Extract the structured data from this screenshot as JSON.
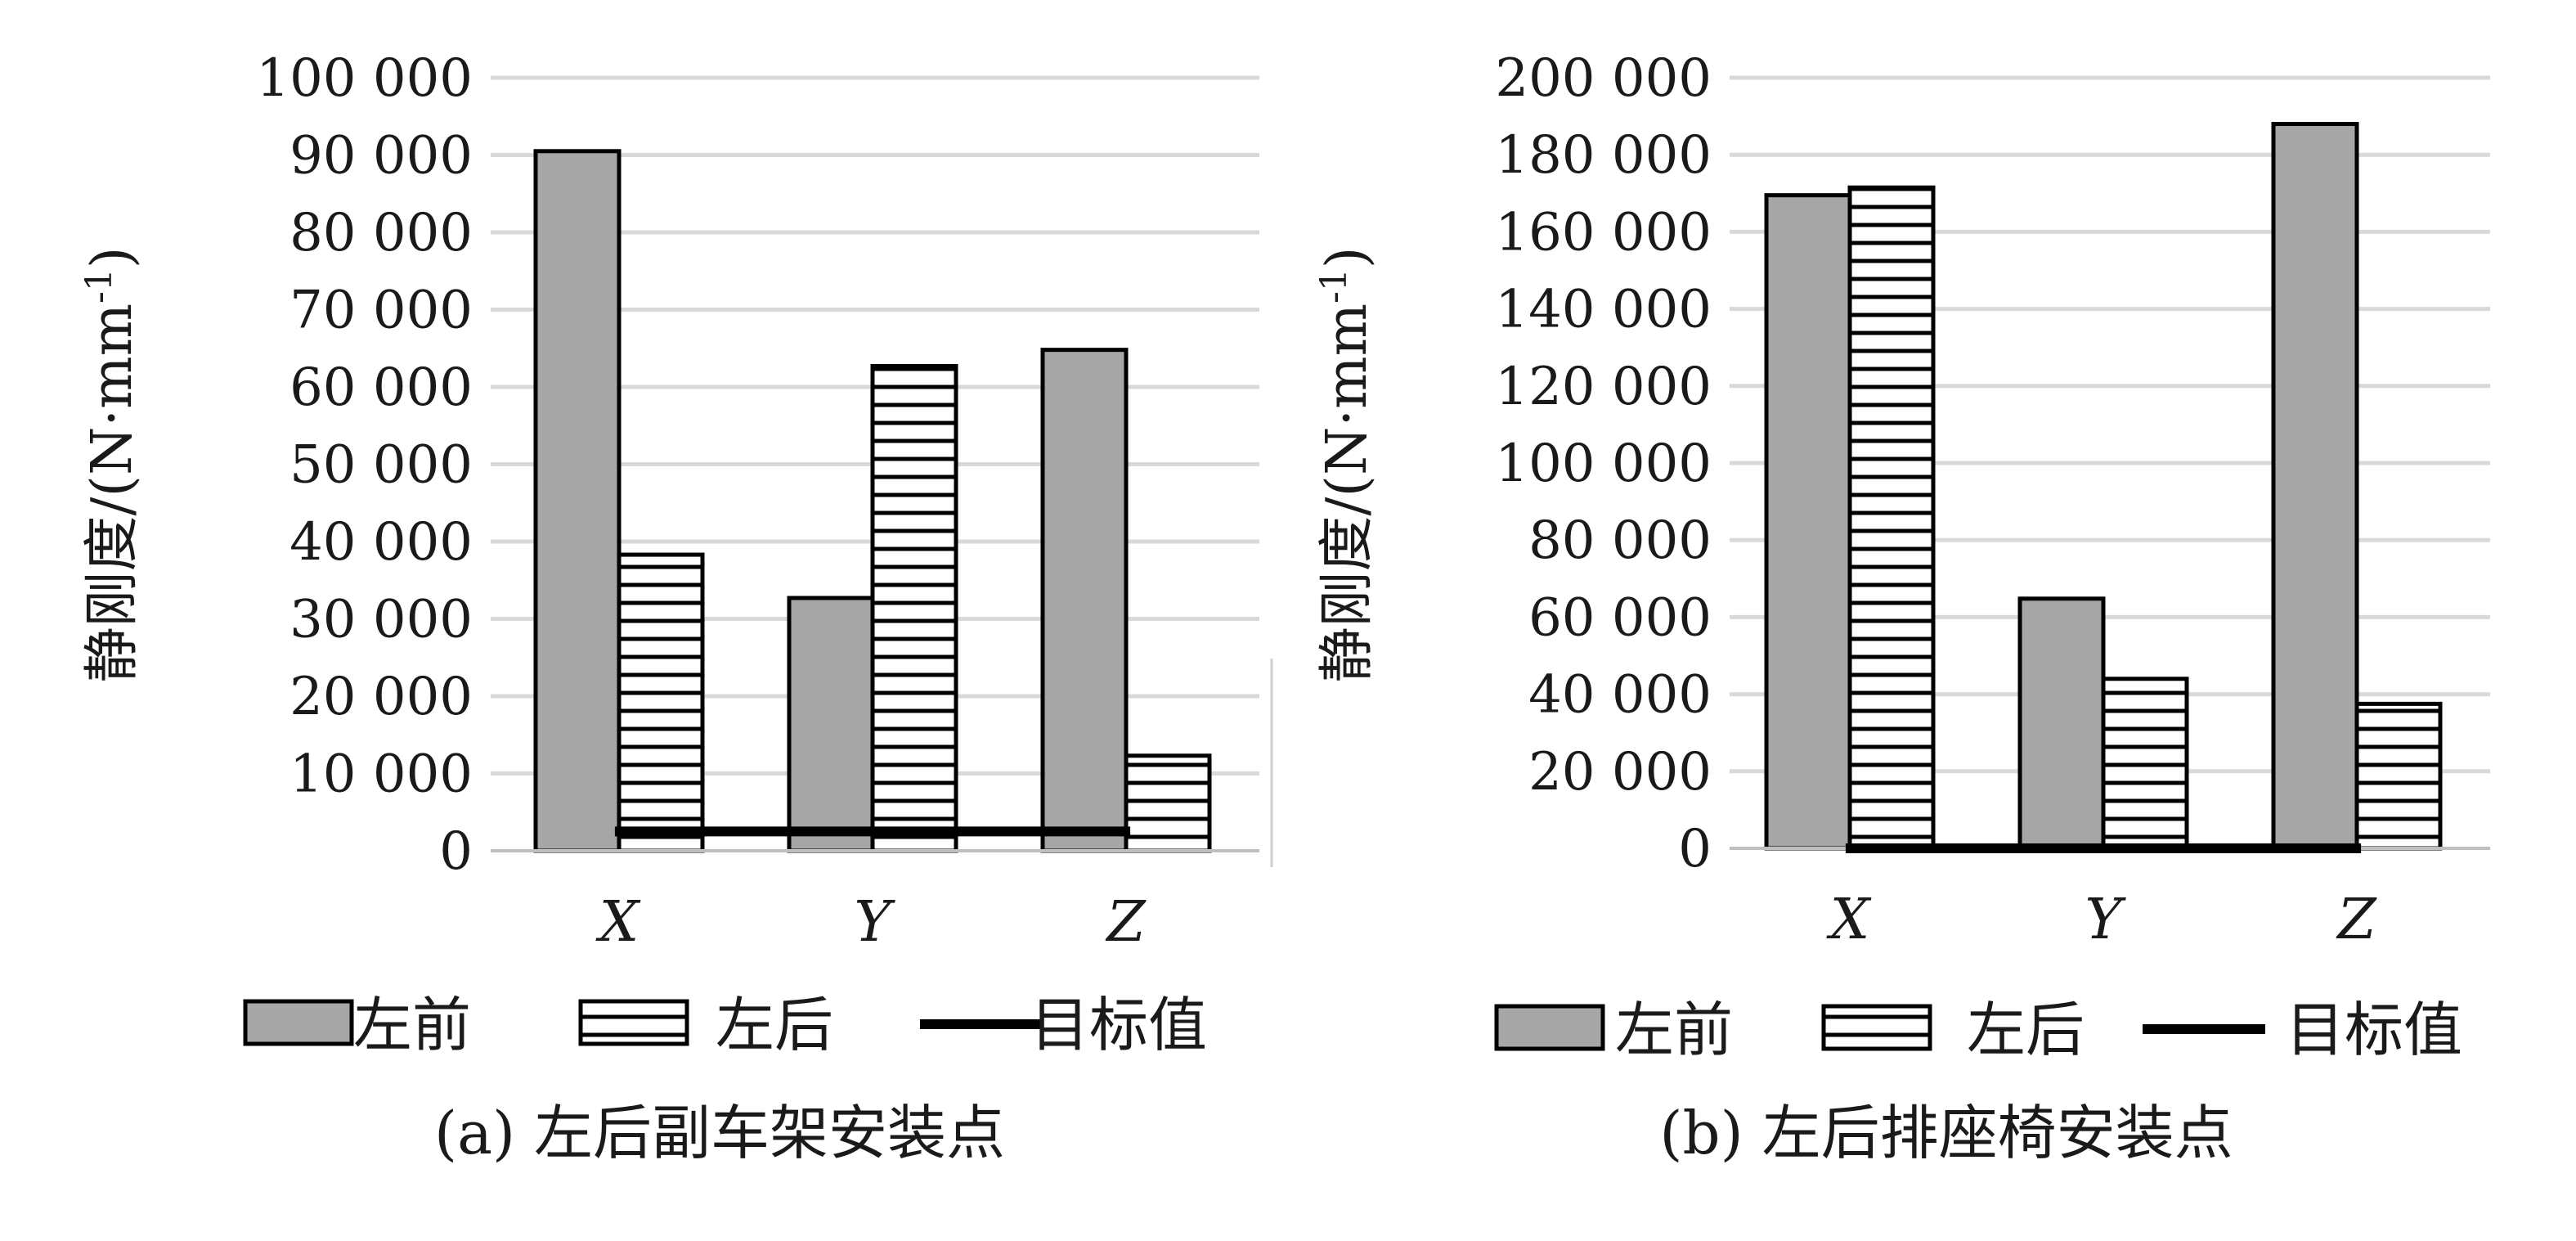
{
  "chart_data": [
    {
      "type": "bar",
      "title": "",
      "caption": "(a) 左后副车架安装点",
      "ylabel": "静刚度/(N·mm-1)",
      "ylabel_unit": "静刚度/(N·mm",
      "ylabel_sup": "-1",
      "ylabel_close": ")",
      "xlabel": "",
      "categories": [
        "X",
        "Y",
        "Z"
      ],
      "ylim": [
        0,
        100000
      ],
      "yticks": [
        0,
        10000,
        20000,
        30000,
        40000,
        50000,
        60000,
        70000,
        80000,
        90000,
        100000
      ],
      "ytick_labels": [
        "0",
        "10 000",
        "20 000",
        "30 000",
        "40 000",
        "50 000",
        "60 000",
        "70 000",
        "80 000",
        "90 000",
        "100 000"
      ],
      "grid": true,
      "legend_position": "bottom",
      "series": [
        {
          "name": "左前",
          "kind": "bar",
          "style": "solid-gray",
          "values": [
            90500,
            32700,
            64800
          ]
        },
        {
          "name": "左后",
          "kind": "bar",
          "style": "horizontal-hatch",
          "values": [
            38300,
            62700,
            12300
          ]
        },
        {
          "name": "目标值",
          "kind": "line",
          "style": "thick-black",
          "values": [
            2500,
            2500,
            2500
          ]
        }
      ]
    },
    {
      "type": "bar",
      "title": "",
      "caption": "(b) 左后排座椅安装点",
      "ylabel": "静刚度/(N·mm-1)",
      "ylabel_unit": "静刚度/(N·mm",
      "ylabel_sup": "-1",
      "ylabel_close": ")",
      "xlabel": "",
      "categories": [
        "X",
        "Y",
        "Z"
      ],
      "ylim": [
        0,
        200000
      ],
      "yticks": [
        0,
        20000,
        40000,
        60000,
        80000,
        100000,
        120000,
        140000,
        160000,
        180000,
        200000
      ],
      "ytick_labels": [
        "0",
        "20 000",
        "40 000",
        "60 000",
        "80 000",
        "100 000",
        "120 000",
        "140 000",
        "160 000",
        "180 000",
        "200 000"
      ],
      "grid": true,
      "legend_position": "bottom",
      "series": [
        {
          "name": "左前",
          "kind": "bar",
          "style": "solid-gray",
          "values": [
            169500,
            64800,
            188000
          ]
        },
        {
          "name": "左后",
          "kind": "bar",
          "style": "horizontal-hatch",
          "values": [
            171500,
            44000,
            37500
          ]
        },
        {
          "name": "目标值",
          "kind": "line",
          "style": "thick-black",
          "values": [
            0,
            0,
            0
          ]
        }
      ]
    }
  ],
  "colors": {
    "bar_front": "#a6a6a6",
    "bar_rear": "#ffffff",
    "stroke": "#000000",
    "grid": "#d9d9d9",
    "target_line": "#000000"
  }
}
